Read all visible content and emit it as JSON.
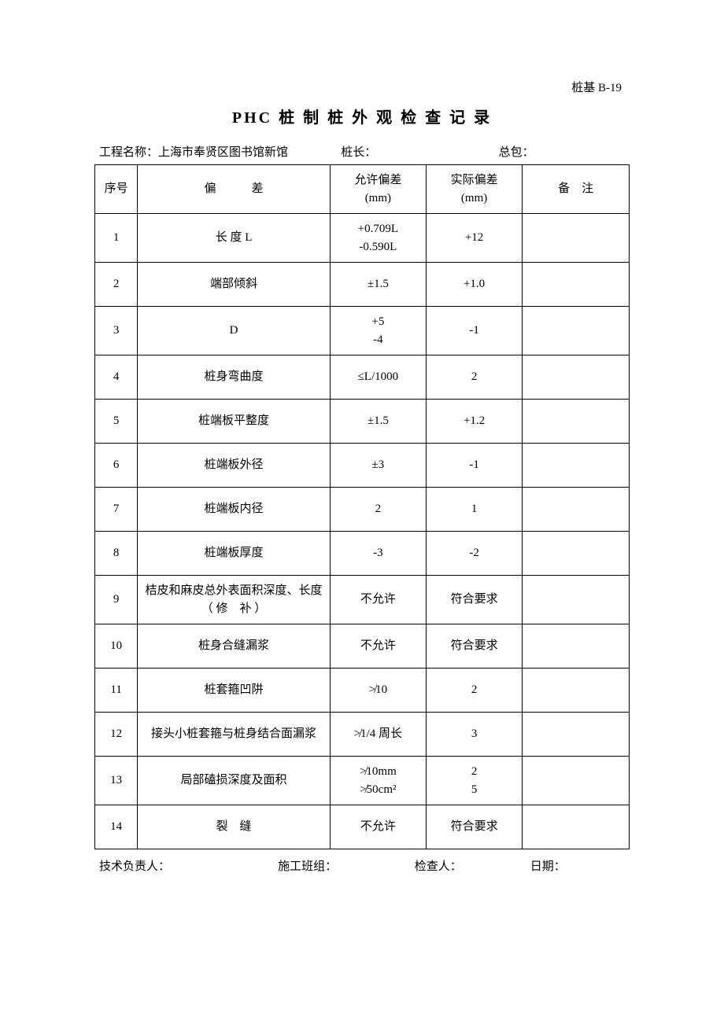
{
  "doc_code": "桩基 B-19",
  "title": "PHC 桩 制 桩 外 观 检 查 记 录",
  "header": {
    "project_label": "工程名称：",
    "project_value": "上海市奉贤区图书馆新馆",
    "pile_length_label": "桩长：",
    "pile_length_value": "",
    "contractor_label": "总包：",
    "contractor_value": ""
  },
  "columns": {
    "no": "序号",
    "deviation": "偏　　　差",
    "allowed": "允许偏差\n(mm)",
    "actual": "实际偏差\n(mm)",
    "note": "备　注"
  },
  "rows": [
    {
      "no": "1",
      "dev": "长 度 L",
      "allow": "+0.709L\n-0.590L",
      "actual": "+12",
      "note": ""
    },
    {
      "no": "2",
      "dev": "端部倾斜",
      "allow": "±1.5",
      "actual": "+1.0",
      "note": ""
    },
    {
      "no": "3",
      "dev": "D",
      "allow": "+5\n-4",
      "actual": "-1",
      "note": ""
    },
    {
      "no": "4",
      "dev": "桩身弯曲度",
      "allow": "≤L/1000",
      "actual": "2",
      "note": ""
    },
    {
      "no": "5",
      "dev": "桩端板平整度",
      "allow": "±1.5",
      "actual": "+1.2",
      "note": ""
    },
    {
      "no": "6",
      "dev": "桩端板外径",
      "allow": "±3",
      "actual": "-1",
      "note": ""
    },
    {
      "no": "7",
      "dev": "桩端板内径",
      "allow": "2",
      "actual": "1",
      "note": ""
    },
    {
      "no": "8",
      "dev": "桩端板厚度",
      "allow": "-3",
      "actual": "-2",
      "note": ""
    },
    {
      "no": "9",
      "dev": "桔皮和麻皮总外表面积深度、长度\n（ 修　补 ）",
      "allow": "不允许",
      "actual": "符合要求",
      "note": ""
    },
    {
      "no": "10",
      "dev": "桩身合缝漏浆",
      "allow": "不允许",
      "actual": "符合要求",
      "note": ""
    },
    {
      "no": "11",
      "dev": "桩套箍凹阱",
      "allow": "≯10",
      "actual": "2",
      "note": ""
    },
    {
      "no": "12",
      "dev": "接头小桩套箍与桩身结合面漏浆",
      "allow": "≯1/4 周长",
      "actual": "3",
      "note": ""
    },
    {
      "no": "13",
      "dev": "局部磕损深度及面积",
      "allow": "≯10mm\n≯50cm²",
      "actual": "2\n5",
      "note": ""
    },
    {
      "no": "14",
      "dev": "裂　缝",
      "allow": "不允许",
      "actual": "符合要求",
      "note": ""
    }
  ],
  "footer": {
    "tech_lead_label": "技术负责人：",
    "tech_lead_value": "",
    "team_label": "施工班组：",
    "team_value": "",
    "inspector_label": "检查人：",
    "inspector_value": "",
    "date_label": "日期：",
    "date_value": ""
  }
}
